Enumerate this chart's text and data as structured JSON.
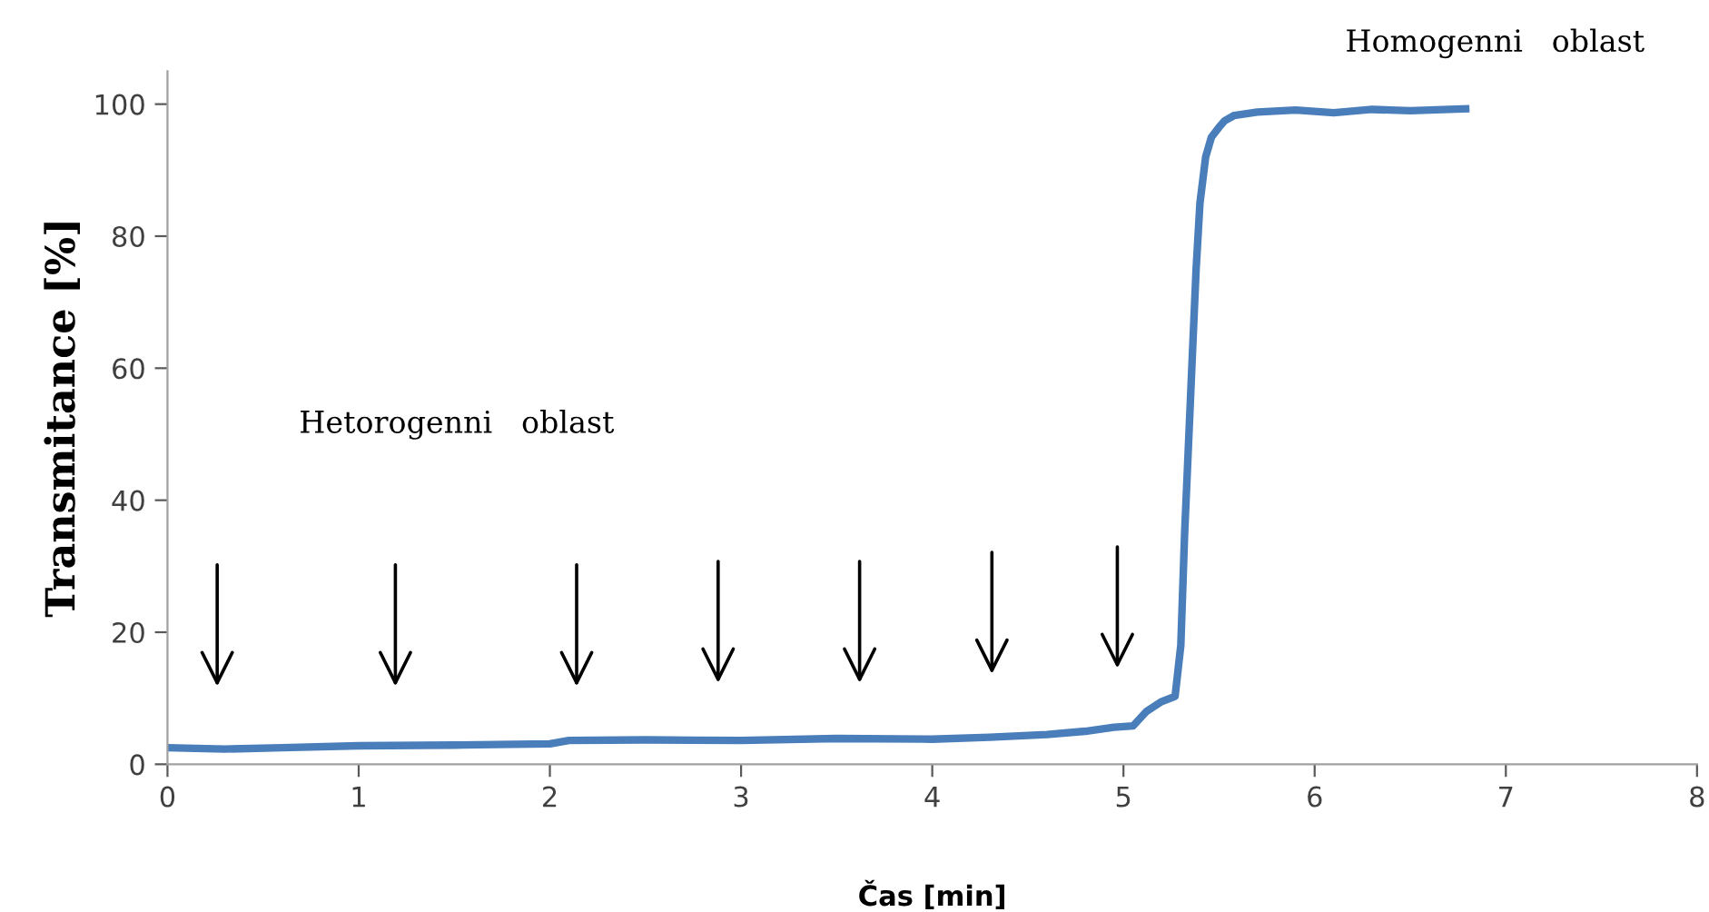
{
  "chart_data": {
    "type": "line",
    "xlabel": "Čas [min]",
    "ylabel": "Transmitance [%]",
    "series": [
      {
        "color": "#4a7ebb",
        "x": [
          0,
          0.3,
          0.6,
          1.0,
          1.5,
          2.0,
          2.1,
          2.5,
          3.0,
          3.5,
          4.0,
          4.3,
          4.6,
          4.8,
          4.95,
          5.05,
          5.12,
          5.2,
          5.27,
          5.3,
          5.32,
          5.35,
          5.38,
          5.4,
          5.43,
          5.46,
          5.5,
          5.53,
          5.58,
          5.7,
          5.9,
          6.1,
          6.3,
          6.5,
          6.79
        ],
        "values": [
          2.5,
          2.3,
          2.5,
          2.8,
          2.9,
          3.1,
          3.6,
          3.7,
          3.6,
          3.9,
          3.8,
          4.1,
          4.5,
          5.0,
          5.6,
          5.8,
          8.0,
          9.5,
          10.3,
          18,
          35,
          55,
          75,
          85,
          92,
          95,
          96.5,
          97.5,
          98.3,
          98.8,
          99.1,
          98.7,
          99.2,
          99.0,
          99.3
        ]
      }
    ],
    "xlim": [
      0,
      8
    ],
    "xticks": [
      0,
      1,
      2,
      3,
      4,
      5,
      6,
      7,
      8
    ],
    "ylim": [
      0,
      105
    ],
    "yticks": [
      0,
      20,
      40,
      60,
      80,
      100
    ],
    "grid": false,
    "legend": false,
    "marker": "none",
    "line_style": "solid",
    "annotations": [
      "Hetorogenni   oblast",
      "Homogenni   oblast"
    ]
  }
}
